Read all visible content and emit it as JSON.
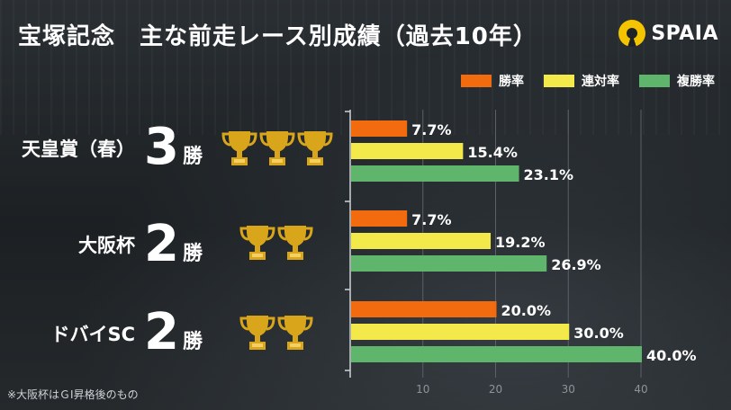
{
  "title": "宝塚記念　主な前走レース別成績（過去10年）",
  "logo": {
    "text": "SPAIA"
  },
  "legend": [
    {
      "label": "勝率",
      "color": "#f26b0f"
    },
    {
      "label": "連対率",
      "color": "#f3e94a"
    },
    {
      "label": "複勝率",
      "color": "#5fb56b"
    }
  ],
  "rows": [
    {
      "label": "天皇賞（春）",
      "wins": "3",
      "unit": "勝",
      "trophies": 3
    },
    {
      "label": "大阪杯",
      "wins": "2",
      "unit": "勝",
      "trophies": 2
    },
    {
      "label": "ドバイSC",
      "wins": "2",
      "unit": "勝",
      "trophies": 2
    }
  ],
  "note": "※大阪杯はＧⅠ昇格後のもの",
  "chart_data": {
    "type": "bar",
    "orientation": "horizontal",
    "categories": [
      "天皇賞（春）",
      "大阪杯",
      "ドバイSC"
    ],
    "series": [
      {
        "name": "勝率",
        "values": [
          7.7,
          7.7,
          20.0
        ],
        "labels": [
          "7.7%",
          "7.7%",
          "20.0%"
        ],
        "color": "#f26b0f"
      },
      {
        "name": "連対率",
        "values": [
          15.4,
          19.2,
          30.0
        ],
        "labels": [
          "15.4%",
          "19.2%",
          "30.0%"
        ],
        "color": "#f3e94a"
      },
      {
        "name": "複勝率",
        "values": [
          23.1,
          26.9,
          40.0
        ],
        "labels": [
          "23.1%",
          "26.9%",
          "40.0%"
        ],
        "color": "#5fb56b"
      }
    ],
    "xlim": [
      0,
      40
    ],
    "xticks": [
      10,
      20,
      30,
      40
    ],
    "grid": true,
    "legend": "top-right"
  }
}
